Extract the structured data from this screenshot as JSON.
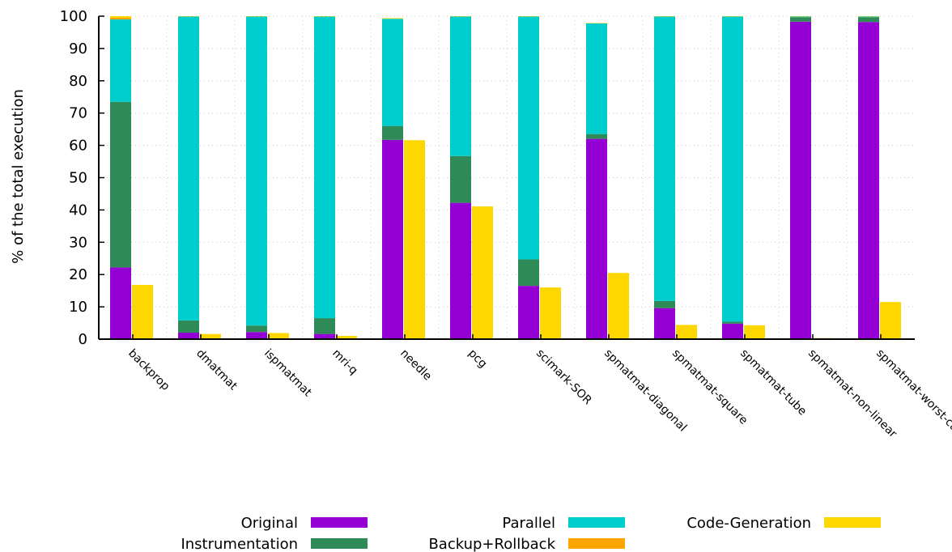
{
  "chart_data": {
    "type": "bar",
    "stacked": true,
    "ylabel": "% of the total execution",
    "ylim": [
      0,
      100
    ],
    "yticks": [
      0,
      10,
      20,
      30,
      40,
      50,
      60,
      70,
      80,
      90,
      100
    ],
    "grid": true,
    "legend_position": "bottom",
    "categories": [
      "backprop",
      "dmatmat",
      "ispmatmat",
      "mri-q",
      "needle",
      "pcg",
      "scimark-SOR",
      "spmatmat-diagonal",
      "spmatmat-square",
      "spmatmat-tube",
      "spmatmat-non-linear",
      "spmatmat-worst-case"
    ],
    "stack_series": [
      {
        "name": "Original",
        "color": "#9400d3",
        "values": [
          22.2,
          2.0,
          2.2,
          1.6,
          61.7,
          42.2,
          16.5,
          62.0,
          9.6,
          4.8,
          98.3,
          98.2
        ]
      },
      {
        "name": "Instrumentation",
        "color": "#2e8b57",
        "values": [
          51.3,
          3.8,
          2.0,
          4.9,
          4.3,
          14.5,
          8.2,
          1.5,
          2.2,
          0.6,
          1.4,
          1.5
        ]
      },
      {
        "name": "Parallel",
        "color": "#00cdcd",
        "values": [
          25.5,
          94.1,
          95.7,
          93.4,
          33.2,
          43.2,
          75.2,
          34.3,
          88.1,
          94.5,
          0.2,
          0.2
        ]
      },
      {
        "name": "Backup+Rollback",
        "color": "#ffa500",
        "values": [
          0.5,
          0.0,
          0.0,
          0.0,
          0.0,
          0.0,
          0.0,
          0.0,
          0.0,
          0.0,
          0.0,
          0.0
        ]
      },
      {
        "name": "Code-Generation",
        "color": "#ffd700",
        "values": [
          0.5,
          0.1,
          0.1,
          0.1,
          0.2,
          0.1,
          0.1,
          0.1,
          0.1,
          0.1,
          0.1,
          0.1
        ]
      }
    ],
    "side_series": {
      "name": "Code-Generation",
      "color": "#ffd700",
      "values": [
        16.8,
        1.6,
        1.9,
        1.0,
        61.6,
        41.1,
        16.0,
        20.5,
        4.4,
        4.3,
        0.3,
        11.5
      ]
    },
    "legend": [
      {
        "label": "Original",
        "color": "#9400d3"
      },
      {
        "label": "Instrumentation",
        "color": "#2e8b57"
      },
      {
        "label": "Parallel",
        "color": "#00cdcd"
      },
      {
        "label": "Backup+Rollback",
        "color": "#ffa500"
      },
      {
        "label": "Code-Generation",
        "color": "#ffd700"
      }
    ]
  }
}
